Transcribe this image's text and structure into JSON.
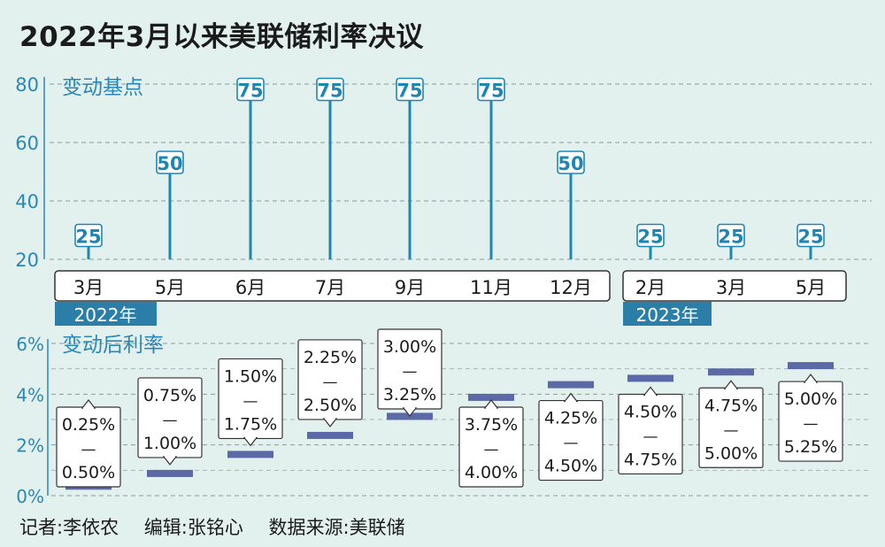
{
  "title": "2022年3月以来美联储利率决议",
  "credits": {
    "reporter": "记者:李依农",
    "editor": "编辑:张铭心",
    "source": "数据来源:美联储"
  },
  "colors": {
    "background": "#e3f1ee",
    "axis_blue": "#2b87b6",
    "bar_blue": "#1e86b5",
    "rate_bar": "#5b6aa7",
    "year_tag": "#2a7ea8"
  },
  "chart_data": [
    {
      "type": "bar",
      "title": "变动基点",
      "categories": [
        "3月",
        "5月",
        "6月",
        "7月",
        "9月",
        "11月",
        "12月",
        "2月",
        "3月",
        "5月"
      ],
      "groups": [
        {
          "label": "2022年",
          "count": 7
        },
        {
          "label": "2023年",
          "count": 3
        }
      ],
      "values": [
        25,
        50,
        75,
        75,
        75,
        75,
        50,
        25,
        25,
        25
      ],
      "ylim": [
        20,
        80
      ],
      "yticks": [
        20,
        40,
        60,
        80
      ],
      "grid": true
    },
    {
      "type": "range",
      "title": "变动后利率",
      "categories": [
        "3月",
        "5月",
        "6月",
        "7月",
        "9月",
        "11月",
        "12月",
        "2月",
        "3月",
        "5月"
      ],
      "lower": [
        0.25,
        0.75,
        1.5,
        2.25,
        3.0,
        3.75,
        4.25,
        4.5,
        4.75,
        5.0
      ],
      "upper": [
        0.5,
        1.0,
        1.75,
        2.5,
        3.25,
        4.0,
        4.5,
        4.75,
        5.0,
        5.25
      ],
      "labels": [
        {
          "low": "0.25%",
          "high": "0.50%"
        },
        {
          "low": "0.75%",
          "high": "1.00%"
        },
        {
          "low": "1.50%",
          "high": "1.75%"
        },
        {
          "low": "2.25%",
          "high": "2.50%"
        },
        {
          "low": "3.00%",
          "high": "3.25%"
        },
        {
          "low": "3.75%",
          "high": "4.00%"
        },
        {
          "low": "4.25%",
          "high": "4.50%"
        },
        {
          "low": "4.50%",
          "high": "4.75%"
        },
        {
          "low": "4.75%",
          "high": "5.00%"
        },
        {
          "low": "5.00%",
          "high": "5.25%"
        }
      ],
      "separator": "—",
      "label_position": [
        "below",
        "above",
        "above",
        "above",
        "above",
        "below",
        "below",
        "below",
        "below",
        "below"
      ],
      "ylim": [
        0,
        6
      ],
      "yticks": [
        "0%",
        "2%",
        "4%",
        "6%"
      ],
      "grid": true
    }
  ]
}
